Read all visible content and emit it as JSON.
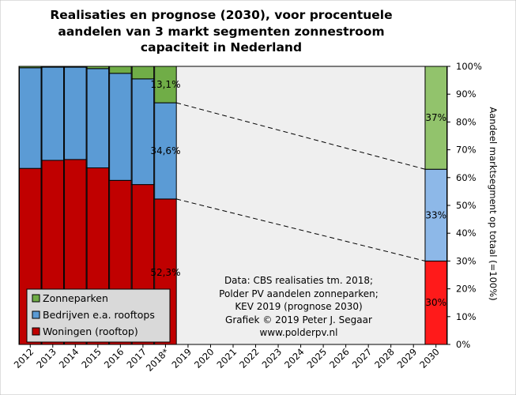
{
  "chart_data": {
    "type": "bar",
    "stacked": true,
    "percent": true,
    "title": [
      "Realisaties  en prognose (2030), voor procentuele",
      "aandelen van 3 markt segmenten zonnestroom",
      "capaciteit  in Nederland"
    ],
    "ylabel": "Aandeel marktsegment op totaal (=100%)",
    "ylim": [
      0,
      100
    ],
    "yticks": [
      "0%",
      "10%",
      "20%",
      "30%",
      "40%",
      "50%",
      "60%",
      "70%",
      "80%",
      "90%",
      "100%"
    ],
    "categories": [
      "2012",
      "2013",
      "2014",
      "2015",
      "2016",
      "2017",
      "2018*",
      "2019",
      "2020",
      "2021",
      "2022",
      "2023",
      "2024",
      "2025",
      "2026",
      "2027",
      "2028",
      "2029",
      "2030"
    ],
    "series": [
      {
        "name": "Woningen (rooftop)",
        "color": "#c00000",
        "values": [
          63.3,
          66.2,
          66.5,
          63.5,
          59.0,
          57.5,
          52.3,
          null,
          null,
          null,
          null,
          null,
          null,
          null,
          null,
          null,
          null,
          null,
          30
        ]
      },
      {
        "name": "Bedrijven e.a. rooftops",
        "color": "#5b9bd5",
        "values": [
          36.2,
          33.5,
          33.2,
          35.7,
          38.5,
          38.0,
          34.6,
          null,
          null,
          null,
          null,
          null,
          null,
          null,
          null,
          null,
          null,
          null,
          33
        ]
      },
      {
        "name": "Zonneparken",
        "color": "#70ad47",
        "values": [
          0.5,
          0.3,
          0.3,
          0.8,
          2.5,
          4.5,
          13.1,
          null,
          null,
          null,
          null,
          null,
          null,
          null,
          null,
          null,
          null,
          null,
          37
        ]
      }
    ],
    "prognosis_colors": {
      "Woningen (rooftop)": "#ff1a1a",
      "Bedrijven e.a. rooftops": "#8db8e8",
      "Zonneparken": "#92c36c"
    },
    "data_labels": [
      {
        "category": "2018*",
        "series": "Zonneparken",
        "text": "13,1%"
      },
      {
        "category": "2018*",
        "series": "Bedrijven e.a. rooftops",
        "text": "34,6%"
      },
      {
        "category": "2018*",
        "series": "Woningen (rooftop)",
        "text": "52,3%"
      },
      {
        "category": "2030",
        "series": "Zonneparken",
        "text": "37%"
      },
      {
        "category": "2030",
        "series": "Bedrijven e.a. rooftops",
        "text": "33%"
      },
      {
        "category": "2030",
        "series": "Woningen (rooftop)",
        "text": "30%"
      }
    ],
    "legend": {
      "placement": "bottom-left",
      "items": [
        "Zonneparken",
        "Bedrijven e.a. rooftops",
        "Woningen (rooftop)"
      ]
    },
    "annotation": [
      "Data: CBS realisaties tm. 2018;",
      "Polder PV aandelen zonneparken;",
      "KEV 2019 (prognose 2030)",
      "Grafiek  © 2019 Peter J. Segaar",
      "www.polderpv.nl"
    ],
    "plot_background": "#efefef",
    "grid": false
  }
}
